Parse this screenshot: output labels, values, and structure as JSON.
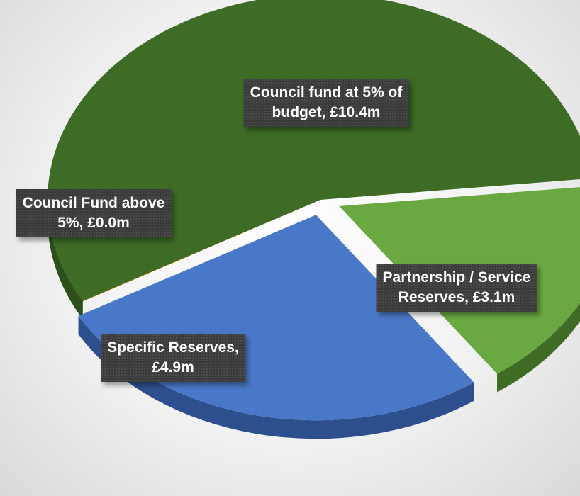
{
  "chart_data": {
    "type": "pie",
    "title": "",
    "slices": [
      {
        "label": "Council fund at 5% of budget",
        "value": 10.4,
        "data_label": "Council fund at 5% of budget, £10.4m",
        "label_lines": [
          "Council fund at 5% of",
          "budget, £10.4m"
        ],
        "color": "#3e6b26",
        "side_color": "#2c4f1b",
        "exploded": false
      },
      {
        "label": "Partnership / Service Reserves",
        "value": 3.1,
        "data_label": "Partnership / Service Reserves, £3.1m",
        "label_lines": [
          "Partnership / Service",
          "Reserves, £3.1m"
        ],
        "color": "#6aa842",
        "side_color": "#3f6b24",
        "exploded": true
      },
      {
        "label": "Specific Reserves",
        "value": 4.9,
        "data_label": "Specific Reserves, £4.9m",
        "label_lines": [
          "Specific Reserves,",
          "£4.9m"
        ],
        "color": "#4a78c8",
        "side_color": "#2d4f8e",
        "exploded": true
      },
      {
        "label": "Council Fund above 5%",
        "value": 0.0,
        "data_label": "Council Fund above 5%, £0.0m",
        "label_lines": [
          "Council Fund above",
          "5%, £0.0m"
        ],
        "color": "#8f6a08",
        "side_color": "#6b4f06",
        "exploded": false
      }
    ],
    "units": "£m",
    "legend": "none",
    "style": "3d-exploded-pie"
  }
}
